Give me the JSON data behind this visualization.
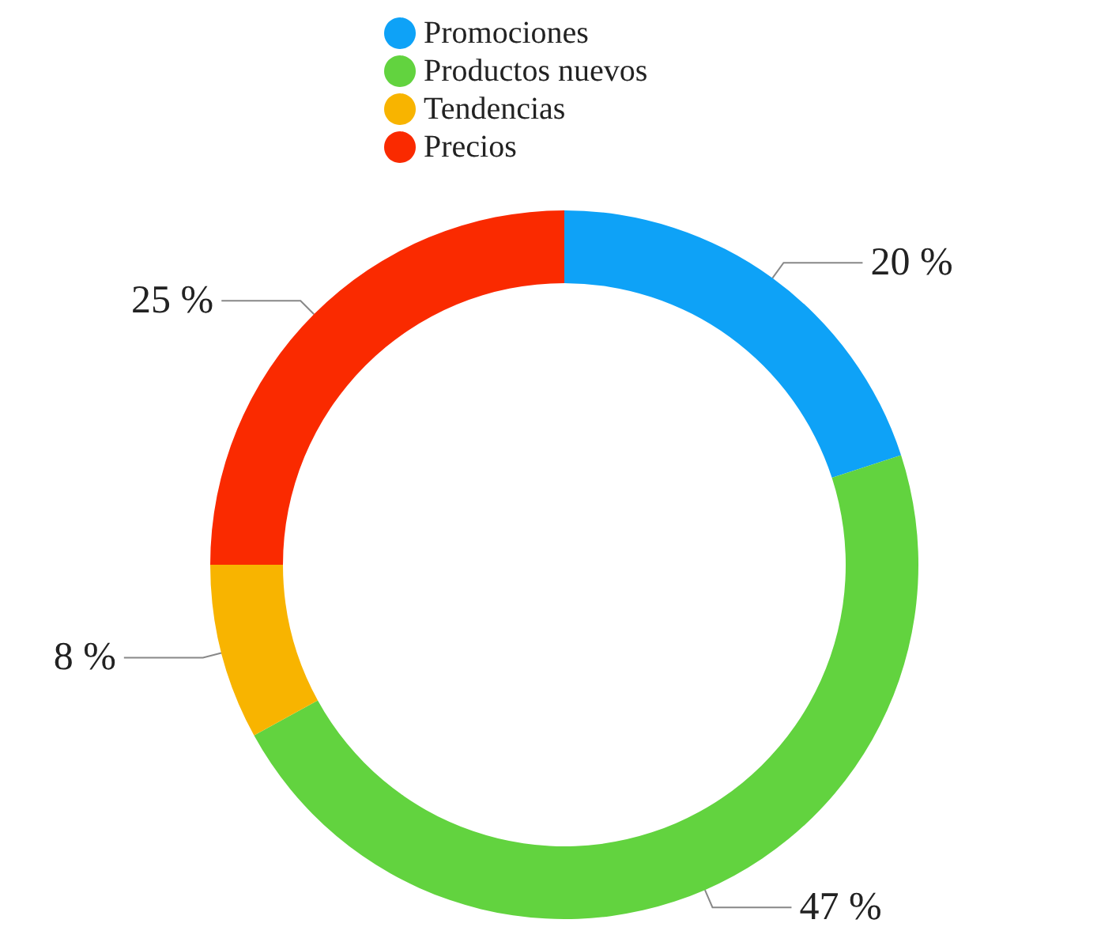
{
  "chart_data": {
    "type": "donut",
    "categories": [
      "Promociones",
      "Productos nuevos",
      "Tendencias",
      "Precios"
    ],
    "values": [
      20,
      47,
      8,
      25
    ],
    "colors": [
      "#0ea2f7",
      "#62d33f",
      "#f8b400",
      "#fa2a00"
    ],
    "value_labels": [
      "20 %",
      "47 %",
      "8 %",
      "25 %"
    ],
    "legend": "top"
  }
}
